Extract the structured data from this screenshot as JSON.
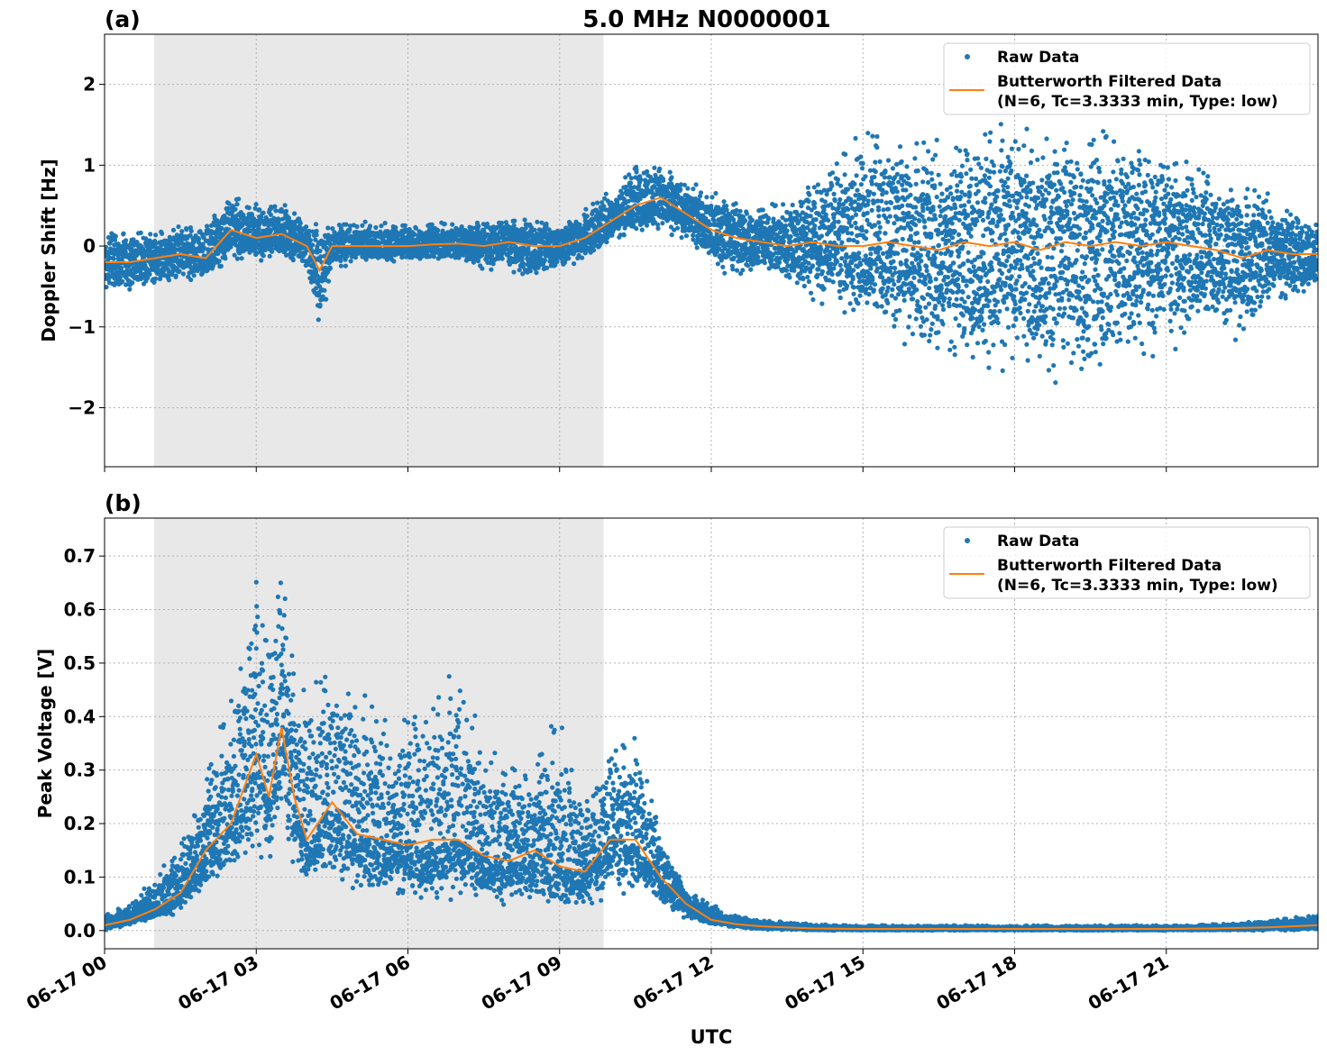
{
  "chart_data": {
    "title": "5.0 MHz N0000001",
    "xlabel": "UTC",
    "x_ticks": [
      "06-17 00",
      "06-17 03",
      "06-17 06",
      "06-17 09",
      "06-17 12",
      "06-17 15",
      "06-17 18",
      "06-17 21"
    ],
    "x_tick_hours": [
      0,
      3,
      6,
      9,
      12,
      15,
      18,
      21
    ],
    "xlim_hours": [
      0,
      24
    ],
    "shaded_interval_hours": [
      0.98,
      9.87
    ],
    "shade_color": "#e8e8e8",
    "grid": true,
    "legend_placement": "upper right",
    "legend": {
      "raw": "Raw Data",
      "filtered_line1": "Butterworth Filtered Data",
      "filtered_line2": "(N=6, Tc=3.3333 min, Type: low)"
    },
    "colors": {
      "raw": "#1f77b4",
      "filtered": "#ff7f0e"
    },
    "panels": [
      {
        "label": "(a)",
        "type": "scatter+line",
        "ylabel": "Doppler Shift [Hz]",
        "ylim": [
          -2.73,
          2.62
        ],
        "y_ticks": [
          2,
          1,
          0,
          -1,
          -2
        ],
        "y_tick_labels": [
          "2",
          "1",
          "0",
          "−1",
          "−2"
        ],
        "hours": [
          0,
          0.5,
          1,
          1.5,
          2,
          2.5,
          3,
          3.5,
          4,
          4.25,
          4.5,
          5,
          5.5,
          6,
          6.5,
          7,
          7.5,
          8,
          8.5,
          9,
          9.5,
          10,
          10.5,
          11,
          11.5,
          12,
          12.5,
          13,
          13.5,
          14,
          14.5,
          15,
          15.5,
          16,
          16.5,
          17,
          17.5,
          18,
          18.5,
          19,
          19.5,
          20,
          20.5,
          21,
          21.5,
          22,
          22.5,
          23,
          23.5,
          24
        ],
        "filtered": [
          -0.2,
          -0.2,
          -0.15,
          -0.1,
          -0.15,
          0.2,
          0.1,
          0.15,
          0.0,
          -0.3,
          0.0,
          0.0,
          0.0,
          0.0,
          0.02,
          0.03,
          0.0,
          0.05,
          0.0,
          0.0,
          0.1,
          0.3,
          0.5,
          0.6,
          0.4,
          0.2,
          0.1,
          0.05,
          0.0,
          0.05,
          0.0,
          0.0,
          0.05,
          0.0,
          -0.05,
          0.05,
          0.0,
          0.05,
          -0.05,
          0.05,
          0.0,
          0.05,
          0.0,
          0.05,
          0.0,
          -0.05,
          -0.15,
          -0.05,
          -0.1,
          -0.1
        ],
        "raw_lower": [
          -0.6,
          -0.55,
          -0.5,
          -0.45,
          -0.4,
          -0.2,
          -0.2,
          -0.15,
          -0.3,
          -1.1,
          -0.3,
          -0.2,
          -0.2,
          -0.2,
          -0.2,
          -0.2,
          -0.3,
          -0.3,
          -0.5,
          -0.3,
          -0.2,
          0.0,
          0.15,
          0.2,
          0.0,
          -0.2,
          -0.5,
          -0.3,
          -0.5,
          -0.7,
          -0.8,
          -1.0,
          -1.2,
          -1.4,
          -1.6,
          -1.5,
          -1.6,
          -1.7,
          -1.7,
          -1.8,
          -2.0,
          -1.6,
          -1.4,
          -1.4,
          -1.2,
          -1.1,
          -1.3,
          -0.8,
          -0.7,
          -0.5
        ],
        "raw_upper": [
          0.25,
          0.2,
          0.2,
          0.25,
          0.3,
          0.65,
          0.55,
          0.6,
          0.35,
          0.3,
          0.3,
          0.3,
          0.3,
          0.3,
          0.3,
          0.3,
          0.35,
          0.35,
          0.35,
          0.3,
          0.5,
          0.7,
          1.1,
          1.0,
          0.8,
          0.7,
          0.6,
          0.5,
          0.6,
          0.9,
          1.2,
          1.5,
          1.7,
          1.5,
          1.4,
          1.5,
          1.6,
          1.5,
          1.4,
          1.5,
          1.5,
          1.5,
          1.4,
          1.2,
          1.1,
          1.0,
          0.9,
          0.7,
          0.5,
          0.3
        ]
      },
      {
        "label": "(b)",
        "type": "scatter+line",
        "ylabel": "Peak Voltage [V]",
        "ylim": [
          -0.034,
          0.771
        ],
        "y_ticks": [
          0.0,
          0.1,
          0.2,
          0.3,
          0.4,
          0.5,
          0.6,
          0.7
        ],
        "y_tick_labels": [
          "0.0",
          "0.1",
          "0.2",
          "0.3",
          "0.4",
          "0.5",
          "0.6",
          "0.7"
        ],
        "hours": [
          0,
          0.5,
          1,
          1.5,
          2,
          2.5,
          3,
          3.25,
          3.5,
          3.75,
          4,
          4.5,
          5,
          5.5,
          6,
          6.5,
          7,
          7.5,
          8,
          8.5,
          9,
          9.5,
          10,
          10.5,
          11,
          11.5,
          12,
          12.5,
          13,
          14,
          15,
          16,
          17,
          18,
          19,
          20,
          21,
          22,
          23,
          24
        ],
        "filtered": [
          0.01,
          0.02,
          0.04,
          0.07,
          0.15,
          0.2,
          0.33,
          0.25,
          0.38,
          0.25,
          0.17,
          0.24,
          0.18,
          0.17,
          0.16,
          0.17,
          0.17,
          0.14,
          0.13,
          0.15,
          0.12,
          0.11,
          0.17,
          0.17,
          0.1,
          0.05,
          0.02,
          0.012,
          0.008,
          0.004,
          0.003,
          0.003,
          0.003,
          0.003,
          0.003,
          0.003,
          0.003,
          0.004,
          0.006,
          0.01
        ],
        "raw_lower": [
          0.0,
          0.01,
          0.02,
          0.03,
          0.07,
          0.1,
          0.12,
          0.13,
          0.15,
          0.12,
          0.08,
          0.07,
          0.06,
          0.05,
          0.05,
          0.05,
          0.05,
          0.05,
          0.04,
          0.04,
          0.03,
          0.04,
          0.06,
          0.07,
          0.04,
          0.02,
          0.01,
          0.005,
          0.002,
          0.0,
          0.0,
          0.0,
          0.0,
          0.0,
          0.0,
          0.0,
          0.0,
          0.0,
          0.0,
          0.0
        ],
        "raw_upper": [
          0.03,
          0.05,
          0.1,
          0.17,
          0.3,
          0.45,
          0.7,
          0.6,
          0.73,
          0.5,
          0.45,
          0.55,
          0.5,
          0.4,
          0.45,
          0.45,
          0.5,
          0.35,
          0.33,
          0.33,
          0.42,
          0.25,
          0.36,
          0.37,
          0.2,
          0.08,
          0.05,
          0.03,
          0.02,
          0.012,
          0.01,
          0.01,
          0.01,
          0.01,
          0.01,
          0.01,
          0.01,
          0.012,
          0.02,
          0.03
        ]
      }
    ]
  }
}
